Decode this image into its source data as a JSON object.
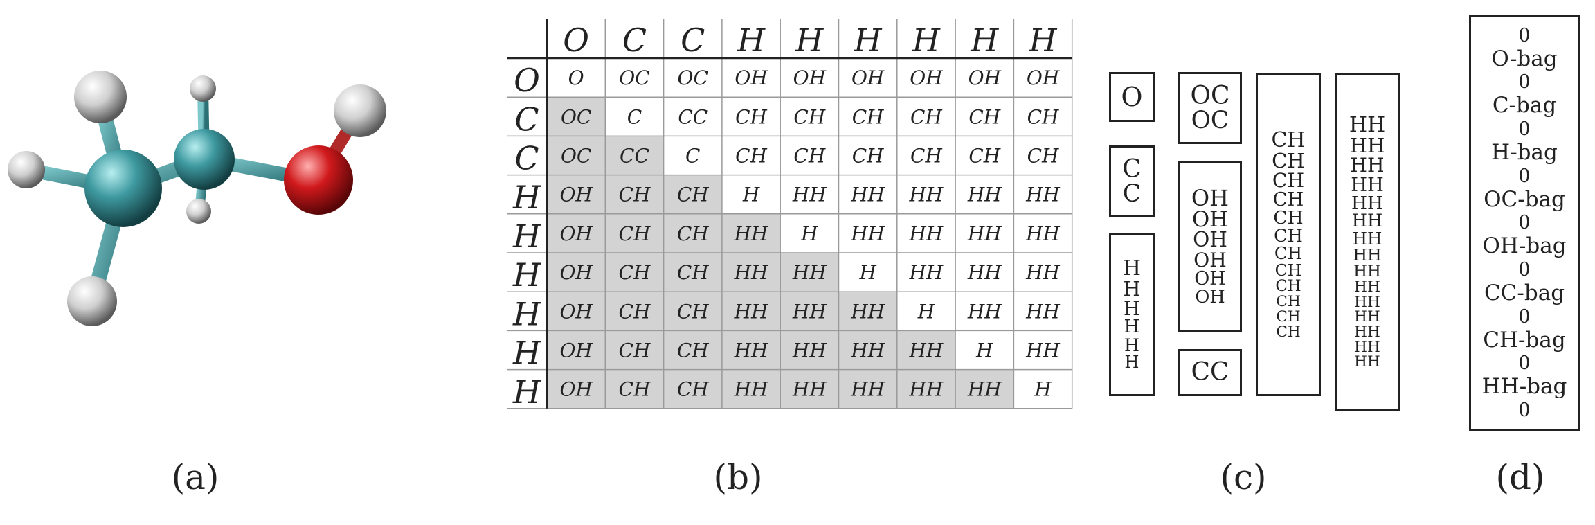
{
  "captions": {
    "a": "(a)",
    "b": "(b)",
    "c": "(c)",
    "d": "(d)"
  },
  "molecule": {
    "atoms": [
      {
        "element": "C",
        "color": "#3e9aa0"
      },
      {
        "element": "C",
        "color": "#3e9aa0"
      },
      {
        "element": "O",
        "color": "#d0191c"
      },
      {
        "element": "H",
        "color": "#d8d8d8"
      },
      {
        "element": "H",
        "color": "#d8d8d8"
      },
      {
        "element": "H",
        "color": "#d8d8d8"
      },
      {
        "element": "H",
        "color": "#d8d8d8"
      },
      {
        "element": "H",
        "color": "#d8d8d8"
      },
      {
        "element": "H",
        "color": "#d8d8d8"
      }
    ]
  },
  "matrix": {
    "atoms": [
      "O",
      "C",
      "C",
      "H",
      "H",
      "H",
      "H",
      "H",
      "H"
    ],
    "cells": [
      [
        "O",
        "OC",
        "OC",
        "OH",
        "OH",
        "OH",
        "OH",
        "OH",
        "OH"
      ],
      [
        "OC",
        "C",
        "CC",
        "CH",
        "CH",
        "CH",
        "CH",
        "CH",
        "CH"
      ],
      [
        "OC",
        "CC",
        "C",
        "CH",
        "CH",
        "CH",
        "CH",
        "CH",
        "CH"
      ],
      [
        "OH",
        "CH",
        "CH",
        "H",
        "HH",
        "HH",
        "HH",
        "HH",
        "HH"
      ],
      [
        "OH",
        "CH",
        "CH",
        "HH",
        "H",
        "HH",
        "HH",
        "HH",
        "HH"
      ],
      [
        "OH",
        "CH",
        "CH",
        "HH",
        "HH",
        "H",
        "HH",
        "HH",
        "HH"
      ],
      [
        "OH",
        "CH",
        "CH",
        "HH",
        "HH",
        "HH",
        "H",
        "HH",
        "HH"
      ],
      [
        "OH",
        "CH",
        "CH",
        "HH",
        "HH",
        "HH",
        "HH",
        "H",
        "HH"
      ],
      [
        "OH",
        "CH",
        "CH",
        "HH",
        "HH",
        "HH",
        "HH",
        "HH",
        "H"
      ]
    ],
    "shade_color": "#d3d3d3"
  },
  "bags": {
    "o": [
      "O"
    ],
    "c": [
      "C",
      "C"
    ],
    "h": [
      "H",
      "H",
      "H",
      "H",
      "H",
      "H"
    ],
    "oc": [
      "OC",
      "OC"
    ],
    "oh": [
      "OH",
      "OH",
      "OH",
      "OH",
      "OH",
      "OH"
    ],
    "cc": [
      "CC"
    ],
    "ch": [
      "CH",
      "CH",
      "CH",
      "CH",
      "CH",
      "CH",
      "CH",
      "CH",
      "CH",
      "CH",
      "CH",
      "CH"
    ],
    "hh": [
      "HH",
      "HH",
      "HH",
      "HH",
      "HH",
      "HH",
      "HH",
      "HH",
      "HH",
      "HH",
      "HH",
      "HH",
      "HH",
      "HH",
      "HH"
    ]
  },
  "counter": {
    "items": [
      "0",
      "O-bag",
      "0",
      "C-bag",
      "0",
      "H-bag",
      "0",
      "OC-bag",
      "0",
      "OH-bag",
      "0",
      "CC-bag",
      "0",
      "CH-bag",
      "0",
      "HH-bag",
      "0"
    ]
  }
}
